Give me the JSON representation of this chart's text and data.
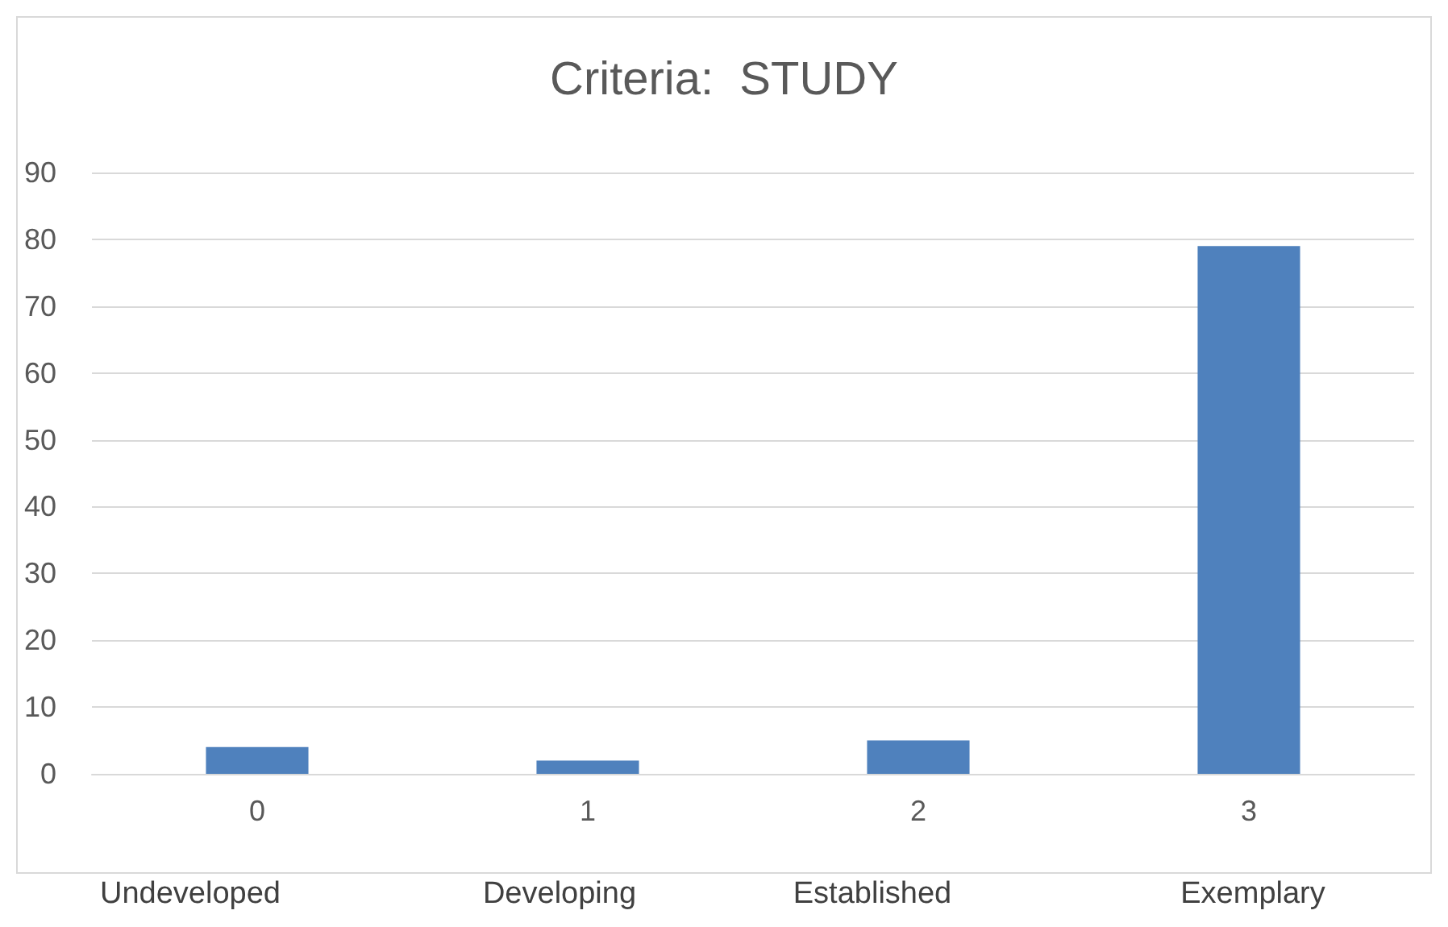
{
  "chart_data": {
    "type": "bar",
    "title": "Criteria:  STUDY",
    "categories": [
      "0",
      "1",
      "2",
      "3"
    ],
    "values": [
      4,
      2,
      5,
      79
    ],
    "color": "#4f81bd",
    "ylim": [
      0,
      90
    ],
    "yticks": [
      0,
      10,
      20,
      30,
      40,
      50,
      60,
      70,
      80,
      90
    ],
    "grid": "y",
    "annotations": [
      "Undeveloped",
      "Developing",
      "Established",
      "Exemplary"
    ]
  }
}
